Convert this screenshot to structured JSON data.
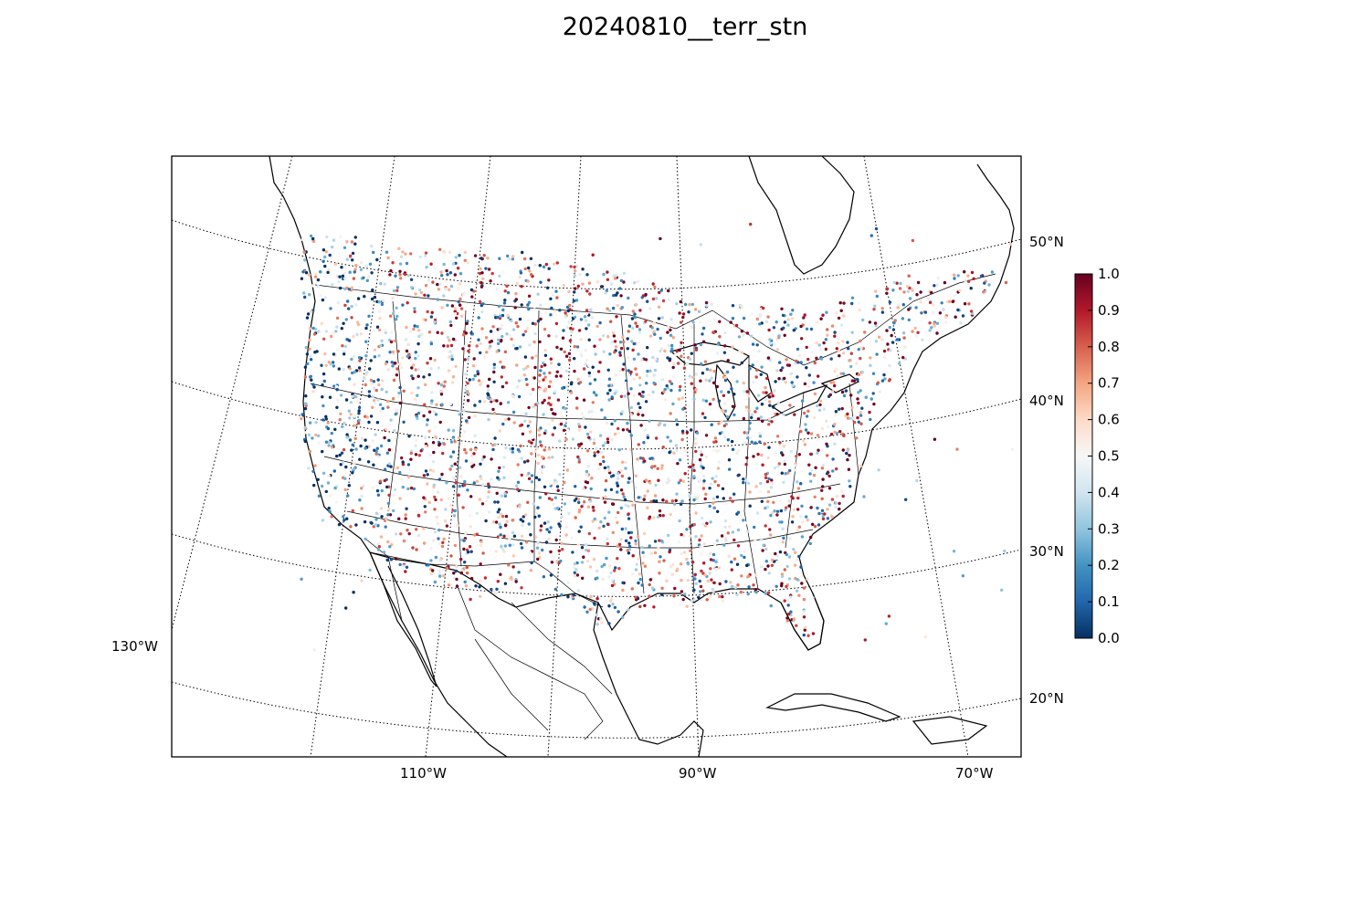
{
  "title": "20240810__terr_stn",
  "map": {
    "projection": "lambert-conformal-conic",
    "lat_labels": [
      "50°N",
      "40°N",
      "30°N",
      "20°N"
    ],
    "lon_labels": [
      "130°W",
      "110°W",
      "90°W",
      "70°W"
    ],
    "graticule_style": "dotted",
    "coastline_color": "#000000",
    "border_color": "#000000"
  },
  "stations": {
    "description_value_range": [
      0.0,
      1.0
    ],
    "colormap": "RdBu_r",
    "marker": "small-dot"
  },
  "colorbar": {
    "ticks": [
      "0.0",
      "0.1",
      "0.2",
      "0.3",
      "0.4",
      "0.5",
      "0.6",
      "0.7",
      "0.8",
      "0.9",
      "1.0"
    ],
    "min": 0.0,
    "max": 1.0,
    "colors": [
      "#053061",
      "#2166ac",
      "#4393c3",
      "#92c5de",
      "#d1e5f0",
      "#f7f7f7",
      "#fddbc7",
      "#f4a582",
      "#d6604d",
      "#b2182b",
      "#67001f"
    ]
  }
}
